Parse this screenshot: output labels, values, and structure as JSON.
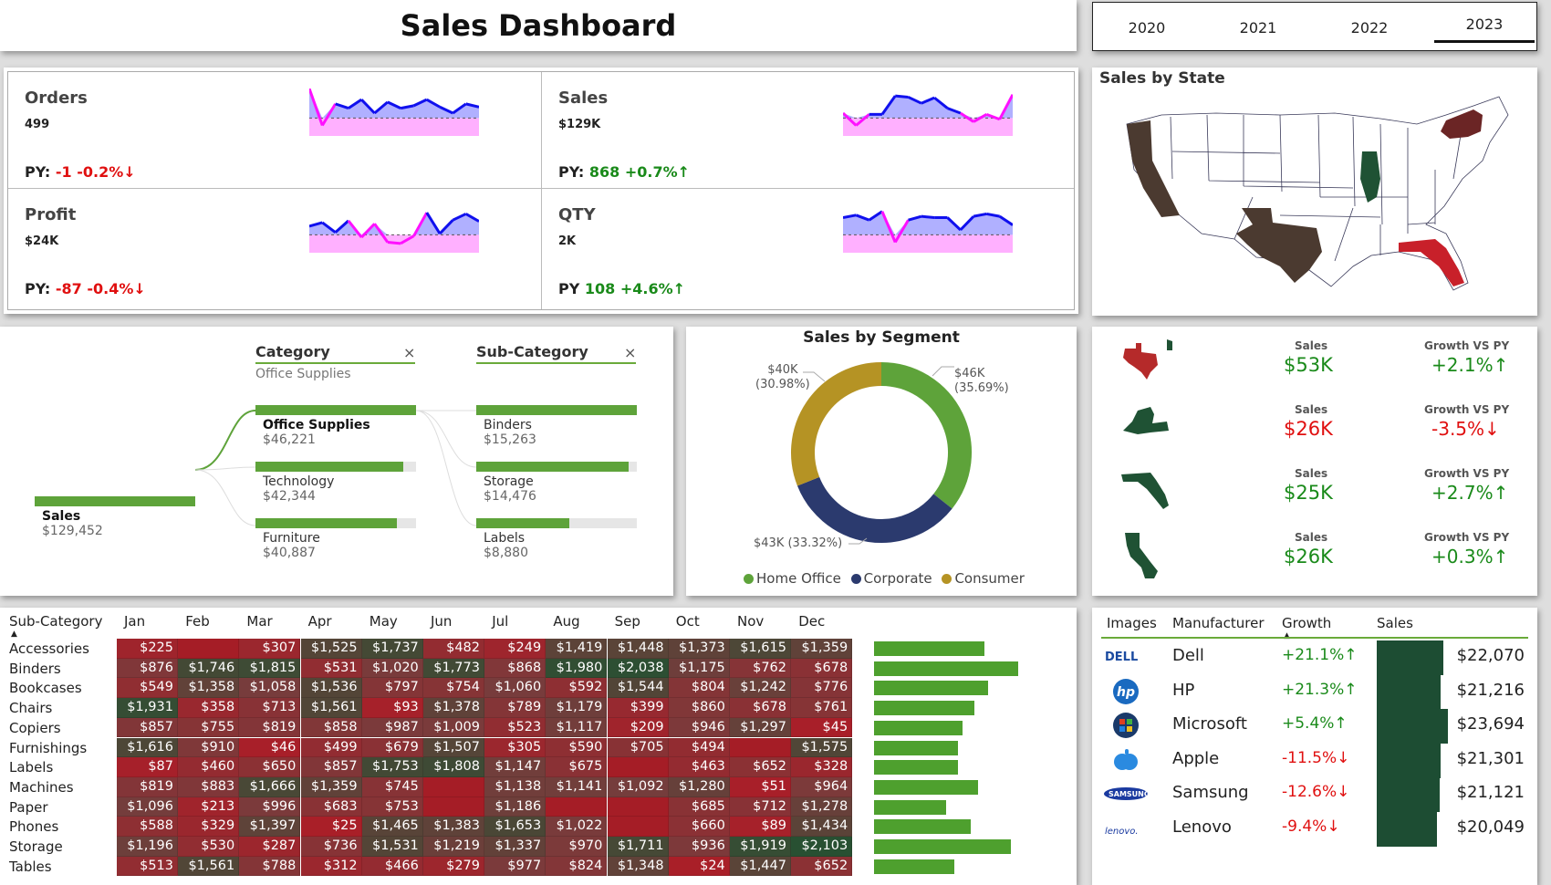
{
  "title": "Sales Dashboard",
  "years": {
    "items": [
      "2020",
      "2021",
      "2022",
      "2023"
    ],
    "selected": "2023"
  },
  "kpis": [
    {
      "title": "Orders",
      "value": "499",
      "py_label": "PY:",
      "py_diff": "-1",
      "py_pct": "-0.2%↓",
      "trend": "neg",
      "spark": [
        80,
        20,
        55,
        48,
        62,
        40,
        58,
        48,
        52,
        62,
        50,
        40,
        55,
        50
      ]
    },
    {
      "title": "Sales",
      "value": "$129K",
      "py_label": "PY:",
      "py_diff": "868",
      "py_pct": "+0.7%↑",
      "trend": "pos",
      "spark": [
        40,
        20,
        38,
        38,
        68,
        66,
        56,
        65,
        48,
        40,
        26,
        38,
        30,
        70
      ]
    },
    {
      "title": "Profit",
      "value": "$24K",
      "py_label": "PY:",
      "py_diff": "-87",
      "py_pct": "-0.4%↓",
      "trend": "neg",
      "spark": [
        46,
        52,
        36,
        55,
        28,
        50,
        20,
        18,
        30,
        68,
        34,
        56,
        66,
        54
      ]
    },
    {
      "title": "QTY",
      "value": "2K",
      "py_label": "PY",
      "py_diff": "108",
      "py_pct": "+4.6%↑",
      "trend": "pos",
      "spark": [
        60,
        64,
        56,
        70,
        20,
        56,
        62,
        60,
        60,
        40,
        62,
        66,
        62,
        48
      ]
    }
  ],
  "map": {
    "title": "Sales by State",
    "highlight": {
      "CA": "#4b3a30",
      "TX": "#4b3a30",
      "IL": "#1f5234",
      "NY": "#6b2525",
      "FL": "#c8202a"
    }
  },
  "tree": {
    "category_header": "Category",
    "category_filter": "Office Supplies",
    "subcategory_header": "Sub-Category",
    "clear_icon": "×",
    "root": {
      "label": "Sales",
      "value": "$129,452",
      "share": 1.0
    },
    "categories": [
      {
        "label": "Office Supplies",
        "value": "$46,221",
        "share": 1.0
      },
      {
        "label": "Technology",
        "value": "$42,344",
        "share": 0.92
      },
      {
        "label": "Furniture",
        "value": "$40,887",
        "share": 0.88
      }
    ],
    "subcategories": [
      {
        "label": "Binders",
        "value": "$15,263",
        "share": 1.0
      },
      {
        "label": "Storage",
        "value": "$14,476",
        "share": 0.95
      },
      {
        "label": "Labels",
        "value": "$8,880",
        "share": 0.58
      }
    ]
  },
  "chart_data": {
    "type": "pie",
    "title": "Sales by Segment",
    "categories": [
      "Home Office",
      "Corporate",
      "Consumer"
    ],
    "values": [
      46,
      43,
      40
    ],
    "labels": [
      "$46K",
      "$43K (33.32%)",
      "$40K"
    ],
    "pct_labels": [
      "(35.69%)",
      "",
      "(30.98%)"
    ],
    "colors": [
      "#5ea33a",
      "#2b3a6e",
      "#b59324"
    ],
    "legend": "bottom"
  },
  "states": {
    "sales_header": "Sales",
    "growth_header": "Growth VS PY",
    "rows": [
      {
        "state": "TX",
        "sales": "$53K",
        "growth": "+2.1%↑",
        "trend": "pos",
        "color": "#b52a2a"
      },
      {
        "state": "NY",
        "sales": "$26K",
        "growth": "-3.5%↓",
        "trend": "neg",
        "color": "#1f5234"
      },
      {
        "state": "FL",
        "sales": "$25K",
        "growth": "+2.7%↑",
        "trend": "pos",
        "color": "#1f5234"
      },
      {
        "state": "CA",
        "sales": "$26K",
        "growth": "+0.3%↑",
        "trend": "pos",
        "color": "#1f5234"
      }
    ]
  },
  "matrix": {
    "row_header": "Sub-Category",
    "months": [
      "Jan",
      "Feb",
      "Mar",
      "Apr",
      "May",
      "Jun",
      "Jul",
      "Aug",
      "Sep",
      "Oct",
      "Nov",
      "Dec"
    ],
    "rows": [
      {
        "name": "Accessories",
        "cells": [
          "$225",
          "",
          "$307",
          "$1,525",
          "$1,737",
          "$482",
          "$249",
          "$1,419",
          "$1,448",
          "$1,373",
          "$1,615",
          "$1,359"
        ],
        "total_share": 0.55
      },
      {
        "name": "Binders",
        "cells": [
          "$876",
          "$1,746",
          "$1,815",
          "$531",
          "$1,020",
          "$1,773",
          "$868",
          "$1,980",
          "$2,038",
          "$1,175",
          "$762",
          "$678"
        ],
        "total_share": 0.72
      },
      {
        "name": "Bookcases",
        "cells": [
          "$549",
          "$1,358",
          "$1,058",
          "$1,536",
          "$797",
          "$754",
          "$1,060",
          "$592",
          "$1,544",
          "$804",
          "$1,242",
          "$776"
        ],
        "total_share": 0.57
      },
      {
        "name": "Chairs",
        "cells": [
          "$1,931",
          "$358",
          "$713",
          "$1,561",
          "$93",
          "$1,378",
          "$789",
          "$1,179",
          "$399",
          "$860",
          "$678",
          "$761"
        ],
        "total_share": 0.5
      },
      {
        "name": "Copiers",
        "cells": [
          "$857",
          "$755",
          "$819",
          "$858",
          "$987",
          "$1,009",
          "$523",
          "$1,117",
          "$209",
          "$946",
          "$1,297",
          "$45"
        ],
        "total_share": 0.44
      },
      {
        "name": "Furnishings",
        "cells": [
          "$1,616",
          "$910",
          "$46",
          "$499",
          "$679",
          "$1,507",
          "$305",
          "$590",
          "$705",
          "$494",
          "",
          "$1,575"
        ],
        "total_share": 0.42
      },
      {
        "name": "Labels",
        "cells": [
          "$87",
          "$460",
          "$650",
          "$857",
          "$1,753",
          "$1,808",
          "$1,147",
          "$675",
          "",
          "$463",
          "$652",
          "$328"
        ],
        "total_share": 0.42
      },
      {
        "name": "Machines",
        "cells": [
          "$819",
          "$883",
          "$1,666",
          "$1,359",
          "$745",
          "",
          "$1,138",
          "$1,141",
          "$1,092",
          "$1,280",
          "$51",
          "$964"
        ],
        "total_share": 0.52
      },
      {
        "name": "Paper",
        "cells": [
          "$1,096",
          "$213",
          "$996",
          "$683",
          "$753",
          "",
          "$1,186",
          "",
          "",
          "$685",
          "$712",
          "$1,278"
        ],
        "total_share": 0.36
      },
      {
        "name": "Phones",
        "cells": [
          "$588",
          "$329",
          "$1,397",
          "$25",
          "$1,465",
          "$1,383",
          "$1,653",
          "$1,022",
          "",
          "$660",
          "$89",
          "$1,434"
        ],
        "total_share": 0.48
      },
      {
        "name": "Storage",
        "cells": [
          "$1,196",
          "$530",
          "$287",
          "$736",
          "$1,531",
          "$1,219",
          "$1,337",
          "$970",
          "$1,711",
          "$936",
          "$1,919",
          "$2,103"
        ],
        "total_share": 0.68
      },
      {
        "name": "Tables",
        "cells": [
          "$513",
          "$1,561",
          "$788",
          "$312",
          "$466",
          "$279",
          "$977",
          "$824",
          "$1,348",
          "$24",
          "$1,447",
          "$652"
        ],
        "total_share": 0.4
      }
    ]
  },
  "manufacturers": {
    "headers": [
      "Images",
      "Manufacturer",
      "Growth",
      "Sales"
    ],
    "rows": [
      {
        "name": "Dell",
        "logo_text": "DELL",
        "growth": "+21.1%↑",
        "trend": "pos",
        "sales": "$22,070",
        "share": 0.93
      },
      {
        "name": "HP",
        "logo_text": "hp",
        "growth": "+21.3%↑",
        "trend": "pos",
        "sales": "$21,216",
        "share": 0.9
      },
      {
        "name": "Microsoft",
        "logo_text": "",
        "growth": "+5.4%↑",
        "trend": "pos",
        "sales": "$23,694",
        "share": 1.0
      },
      {
        "name": "Apple",
        "logo_text": "",
        "growth": "-11.5%↓",
        "trend": "neg",
        "sales": "$21,301",
        "share": 0.9
      },
      {
        "name": "Samsung",
        "logo_text": "SAMSUNG",
        "growth": "-12.6%↓",
        "trend": "neg",
        "sales": "$21,121",
        "share": 0.89
      },
      {
        "name": "Lenovo",
        "logo_text": "lenovo.",
        "growth": "-9.4%↓",
        "trend": "neg",
        "sales": "$20,049",
        "share": 0.85
      }
    ]
  }
}
